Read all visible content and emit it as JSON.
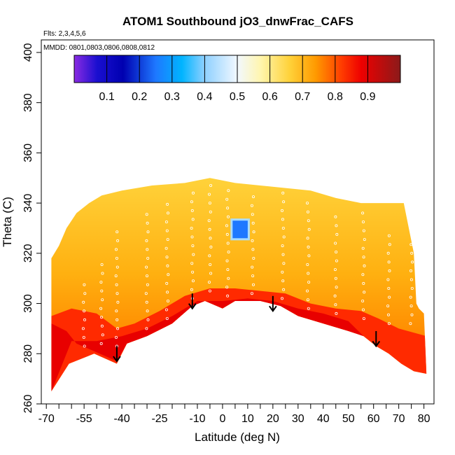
{
  "chart_data": {
    "type": "heatmap",
    "title": "ATOM1 Southbound jO3_dnwFrac_CAFS",
    "subtitle_flights": "Flts: 2,3,4,5,6",
    "subtitle_dates": "MMDD: 0801,0803,0806,0808,0812",
    "xlabel": "Latitude (deg N)",
    "ylabel": "Theta (C)",
    "xlim": [
      -72,
      84
    ],
    "ylim": [
      260,
      405
    ],
    "x_ticks": [
      -70,
      -55,
      -40,
      -25,
      -10,
      0,
      10,
      20,
      30,
      40,
      50,
      60,
      70,
      80
    ],
    "x_tick_labels": [
      "-70",
      "-55",
      "-40",
      "-25",
      "-10",
      "0",
      "10",
      "20",
      "30",
      "40",
      "50",
      "60",
      "70",
      "80"
    ],
    "x_minor_ticks": [
      -65,
      -60,
      -50,
      -45,
      -35,
      -30,
      -20,
      -15,
      -5,
      5,
      15,
      25,
      35,
      45,
      55,
      65,
      75
    ],
    "y_ticks": [
      260,
      280,
      300,
      320,
      340,
      360,
      380,
      400
    ],
    "y_tick_labels": [
      "260",
      "280",
      "300",
      "320",
      "340",
      "360",
      "380",
      "400"
    ],
    "colorbar": {
      "range": [
        0,
        1
      ],
      "ticks": [
        0.1,
        0.2,
        0.3,
        0.4,
        0.5,
        0.6,
        0.7,
        0.8,
        0.9
      ],
      "tick_labels": [
        "0.1",
        "0.2",
        "0.3",
        "0.4",
        "0.5",
        "0.6",
        "0.7",
        "0.8",
        "0.9"
      ],
      "stops": [
        {
          "v": 0.0,
          "c": "#8a2be2"
        },
        {
          "v": 0.07,
          "c": "#1a0fd0"
        },
        {
          "v": 0.15,
          "c": "#0000b0"
        },
        {
          "v": 0.25,
          "c": "#1e78ff"
        },
        {
          "v": 0.33,
          "c": "#00b4ff"
        },
        {
          "v": 0.4,
          "c": "#8ed0ff"
        },
        {
          "v": 0.5,
          "c": "#f2f8ff"
        },
        {
          "v": 0.57,
          "c": "#fff6b0"
        },
        {
          "v": 0.66,
          "c": "#ffd23a"
        },
        {
          "v": 0.74,
          "c": "#ff9a00"
        },
        {
          "v": 0.82,
          "c": "#ff3c00"
        },
        {
          "v": 0.88,
          "c": "#ee0000"
        },
        {
          "v": 1.0,
          "c": "#8b1a1a"
        }
      ]
    },
    "field": {
      "top_boundary": [
        [
          -68,
          318
        ],
        [
          -65,
          323
        ],
        [
          -62,
          330
        ],
        [
          -58,
          336
        ],
        [
          -53,
          340
        ],
        [
          -48,
          343
        ],
        [
          -40,
          345
        ],
        [
          -28,
          347
        ],
        [
          -15,
          348
        ],
        [
          -5,
          350
        ],
        [
          5,
          348
        ],
        [
          15,
          347
        ],
        [
          25,
          346
        ],
        [
          35,
          345
        ],
        [
          45,
          342
        ],
        [
          55,
          340
        ],
        [
          65,
          340
        ],
        [
          72,
          340
        ],
        [
          76,
          320
        ],
        [
          77,
          300
        ],
        [
          78,
          298
        ],
        [
          80,
          296
        ],
        [
          81,
          272
        ]
      ],
      "bottom_boundary": [
        [
          -68,
          265
        ],
        [
          -61,
          276
        ],
        [
          -51,
          280
        ],
        [
          -42,
          276
        ],
        [
          -38,
          284
        ],
        [
          -30,
          287
        ],
        [
          -20,
          292
        ],
        [
          -12,
          299
        ],
        [
          -7,
          301
        ],
        [
          0,
          298
        ],
        [
          5,
          301
        ],
        [
          15,
          301
        ],
        [
          23,
          299
        ],
        [
          30,
          295
        ],
        [
          40,
          292
        ],
        [
          50,
          289
        ],
        [
          56,
          287
        ],
        [
          61,
          283
        ],
        [
          66,
          280
        ],
        [
          71,
          276
        ],
        [
          76,
          273
        ],
        [
          81,
          272
        ]
      ],
      "red_band_top": [
        [
          -68,
          295
        ],
        [
          -60,
          298
        ],
        [
          -50,
          296
        ],
        [
          -42,
          290
        ],
        [
          -35,
          292
        ],
        [
          -25,
          297
        ],
        [
          -15,
          303
        ],
        [
          -5,
          306
        ],
        [
          5,
          306
        ],
        [
          15,
          305
        ],
        [
          25,
          304
        ],
        [
          35,
          300
        ],
        [
          45,
          298
        ],
        [
          55,
          297
        ],
        [
          62,
          294
        ],
        [
          70,
          290
        ],
        [
          81,
          287
        ]
      ],
      "dark_red_region": [
        [
          -68,
          265
        ],
        [
          -68,
          292
        ],
        [
          -62,
          289
        ],
        [
          -58,
          284
        ],
        [
          -51,
          281
        ],
        [
          -42,
          277
        ],
        [
          -38,
          284
        ],
        [
          -30,
          287
        ],
        [
          -20,
          292
        ],
        [
          -12,
          299
        ],
        [
          -7,
          301
        ],
        [
          0,
          298
        ],
        [
          5,
          301
        ],
        [
          15,
          301
        ],
        [
          23,
          299
        ],
        [
          30,
          295
        ],
        [
          40,
          292
        ],
        [
          50,
          289
        ],
        [
          56,
          287
        ],
        [
          50,
          293
        ],
        [
          40,
          296
        ],
        [
          30,
          298
        ],
        [
          20,
          301
        ],
        [
          10,
          302
        ],
        [
          0,
          301
        ],
        [
          -10,
          301
        ],
        [
          -20,
          295
        ],
        [
          -30,
          290
        ],
        [
          -40,
          287
        ],
        [
          -50,
          285
        ],
        [
          -60,
          285
        ]
      ],
      "blue_patch": {
        "x": [
          4,
          10
        ],
        "y": [
          326,
          333
        ],
        "value": 0.25
      }
    },
    "observation_points": [
      {
        "lat": -55,
        "theta_min": 283,
        "theta_max": 310
      },
      {
        "lat": -48,
        "theta_min": 284,
        "theta_max": 318
      },
      {
        "lat": -42,
        "theta_min": 283,
        "theta_max": 330
      },
      {
        "lat": -30,
        "theta_min": 290,
        "theta_max": 338
      },
      {
        "lat": -22,
        "theta_min": 294,
        "theta_max": 342
      },
      {
        "lat": -12,
        "theta_min": 302,
        "theta_max": 346
      },
      {
        "lat": -5,
        "theta_min": 305,
        "theta_max": 348
      },
      {
        "lat": 2,
        "theta_min": 303,
        "theta_max": 346
      },
      {
        "lat": 12,
        "theta_min": 304,
        "theta_max": 345
      },
      {
        "lat": 24,
        "theta_min": 302,
        "theta_max": 344
      },
      {
        "lat": 34,
        "theta_min": 298,
        "theta_max": 343
      },
      {
        "lat": 45,
        "theta_min": 296,
        "theta_max": 337
      },
      {
        "lat": 56,
        "theta_min": 294,
        "theta_max": 336
      },
      {
        "lat": 66,
        "theta_min": 292,
        "theta_max": 330
      },
      {
        "lat": 75,
        "theta_min": 292,
        "theta_max": 325
      }
    ],
    "arrows": [
      {
        "lat": -42,
        "theta_top": 283,
        "theta_tip": 277
      },
      {
        "lat": -12,
        "theta_top": 304,
        "theta_tip": 298
      },
      {
        "lat": 20,
        "theta_top": 303,
        "theta_tip": 297
      },
      {
        "lat": 61,
        "theta_top": 289,
        "theta_tip": 283
      }
    ]
  }
}
